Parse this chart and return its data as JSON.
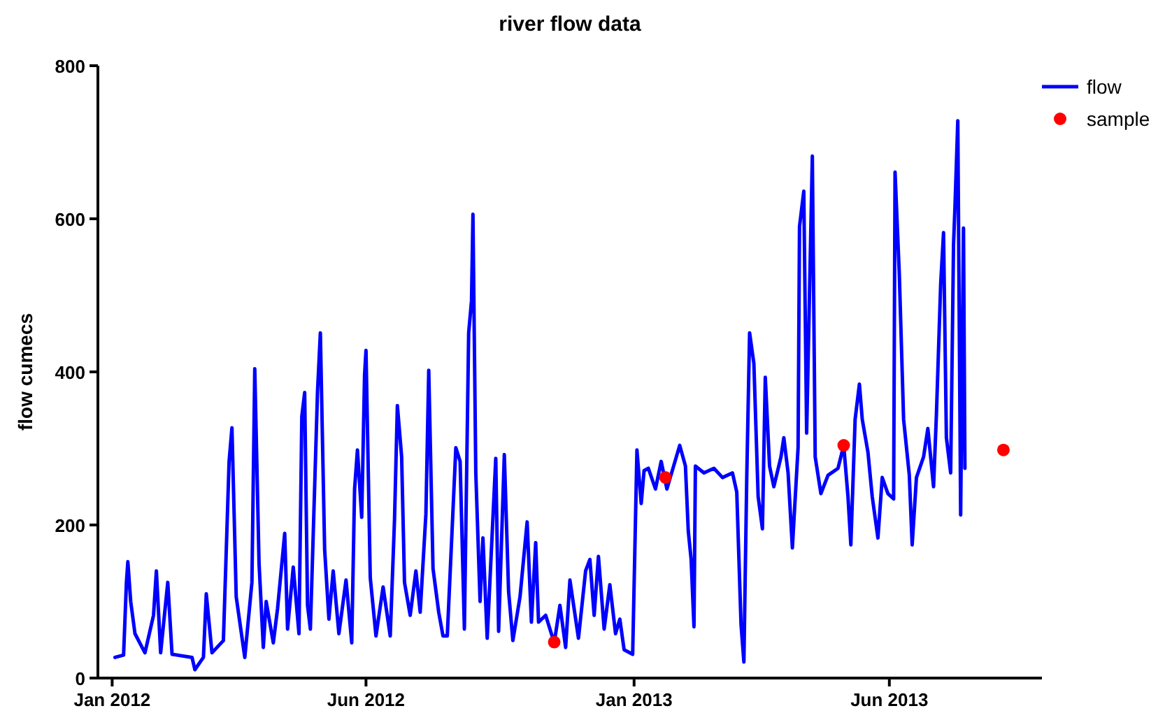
{
  "chart_data": {
    "type": "line",
    "title": "river flow data",
    "ylabel": "flow cumecs",
    "xlim": [
      "2011-12-22",
      "2013-10-14"
    ],
    "xticks": [
      {
        "value": "2012-01-01",
        "label": "Jan 2012"
      },
      {
        "value": "2012-06-27",
        "label": "Jun 2012"
      },
      {
        "value": "2013-01-01",
        "label": "Jan 2013"
      },
      {
        "value": "2013-06-29",
        "label": "Jun 2013"
      }
    ],
    "ylim": [
      0,
      800
    ],
    "yticks": [
      0,
      200,
      400,
      600,
      800
    ],
    "grid": false,
    "legend": "top right",
    "series": [
      {
        "name": "flow",
        "color": "#0000ff",
        "marker": "none",
        "line_style": "solid",
        "x": [
          "2012-01-03",
          "2012-01-09",
          "2012-01-11",
          "2012-01-12",
          "2012-01-14",
          "2012-01-17",
          "2012-01-24",
          "2012-01-30",
          "2012-02-01",
          "2012-02-04",
          "2012-02-09",
          "2012-02-12",
          "2012-02-26",
          "2012-02-28",
          "2012-03-05",
          "2012-03-07",
          "2012-03-11",
          "2012-03-19",
          "2012-03-23",
          "2012-03-25",
          "2012-03-28",
          "2012-04-03",
          "2012-04-08",
          "2012-04-10",
          "2012-04-13",
          "2012-04-16",
          "2012-04-18",
          "2012-04-23",
          "2012-04-26",
          "2012-05-01",
          "2012-05-03",
          "2012-05-07",
          "2012-05-11",
          "2012-05-13",
          "2012-05-15",
          "2012-05-17",
          "2012-05-19",
          "2012-05-24",
          "2012-05-26",
          "2012-05-29",
          "2012-06-01",
          "2012-06-04",
          "2012-06-08",
          "2012-06-13",
          "2012-06-17",
          "2012-06-19",
          "2012-06-21",
          "2012-06-24",
          "2012-06-26",
          "2012-06-27",
          "2012-06-30",
          "2012-07-04",
          "2012-07-09",
          "2012-07-14",
          "2012-07-17",
          "2012-07-19",
          "2012-07-22",
          "2012-07-24",
          "2012-07-28",
          "2012-08-01",
          "2012-08-04",
          "2012-08-08",
          "2012-08-10",
          "2012-08-13",
          "2012-08-17",
          "2012-08-20",
          "2012-08-23",
          "2012-08-27",
          "2012-08-29",
          "2012-09-01",
          "2012-09-04",
          "2012-09-07",
          "2012-09-09",
          "2012-09-10",
          "2012-09-12",
          "2012-09-15",
          "2012-09-17",
          "2012-09-20",
          "2012-09-26",
          "2012-09-28",
          "2012-10-02",
          "2012-10-05",
          "2012-10-08",
          "2012-10-13",
          "2012-10-18",
          "2012-10-21",
          "2012-10-24",
          "2012-10-26",
          "2012-10-31",
          "2012-11-06",
          "2012-11-10",
          "2012-11-14",
          "2012-11-17",
          "2012-11-23",
          "2012-11-28",
          "2012-12-01",
          "2012-12-04",
          "2012-12-07",
          "2012-12-11",
          "2012-12-15",
          "2012-12-19",
          "2012-12-22",
          "2012-12-25",
          "2012-12-31",
          "2013-01-03",
          "2013-01-06",
          "2013-01-08",
          "2013-01-11",
          "2013-01-16",
          "2013-01-20",
          "2013-01-24",
          "2013-02-02",
          "2013-02-06",
          "2013-02-08",
          "2013-02-10",
          "2013-02-12",
          "2013-02-13",
          "2013-02-19",
          "2013-02-26",
          "2013-03-04",
          "2013-03-11",
          "2013-03-14",
          "2013-03-17",
          "2013-03-19",
          "2013-03-21",
          "2013-03-23",
          "2013-03-26",
          "2013-03-29",
          "2013-04-01",
          "2013-04-03",
          "2013-04-06",
          "2013-04-09",
          "2013-04-14",
          "2013-04-16",
          "2013-04-19",
          "2013-04-22",
          "2013-04-26",
          "2013-04-27",
          "2013-04-30",
          "2013-05-02",
          "2013-05-06",
          "2013-05-08",
          "2013-05-12",
          "2013-05-17",
          "2013-05-24",
          "2013-05-28",
          "2013-05-31",
          "2013-06-02",
          "2013-06-05",
          "2013-06-08",
          "2013-06-10",
          "2013-06-14",
          "2013-06-17",
          "2013-06-21",
          "2013-06-24",
          "2013-06-28",
          "2013-07-02",
          "2013-07-03",
          "2013-07-06",
          "2013-07-09",
          "2013-07-13",
          "2013-07-15",
          "2013-07-18",
          "2013-07-23",
          "2013-07-26",
          "2013-07-30",
          "2013-08-01",
          "2013-08-04",
          "2013-08-06",
          "2013-08-08",
          "2013-08-11",
          "2013-08-13",
          "2013-08-14",
          "2013-08-16",
          "2013-08-18",
          "2013-08-20",
          "2013-08-21"
        ],
        "values": [
          27,
          30,
          125,
          152,
          100,
          58,
          33,
          82,
          140,
          33,
          125,
          31,
          27,
          11,
          27,
          110,
          33,
          49,
          283,
          327,
          106,
          27,
          125,
          404,
          150,
          40,
          100,
          46,
          91,
          189,
          64,
          145,
          58,
          342,
          373,
          95,
          64,
          374,
          451,
          168,
          77,
          140,
          58,
          128,
          46,
          247,
          298,
          210,
          396,
          428,
          131,
          55,
          119,
          55,
          207,
          356,
          289,
          125,
          82,
          140,
          86,
          214,
          402,
          143,
          86,
          55,
          55,
          219,
          301,
          283,
          64,
          451,
          493,
          606,
          268,
          100,
          183,
          52,
          287,
          61,
          292,
          113,
          49,
          106,
          204,
          73,
          177,
          73,
          82,
          46,
          95,
          40,
          128,
          52,
          140,
          155,
          82,
          159,
          64,
          122,
          58,
          77,
          37,
          31,
          298,
          228,
          271,
          274,
          247,
          283,
          247,
          304,
          277,
          192,
          155,
          67,
          277,
          268,
          274,
          262,
          268,
          243,
          70,
          21,
          262,
          451,
          411,
          237,
          195,
          393,
          277,
          250,
          289,
          314,
          268,
          170,
          301,
          590,
          636,
          320,
          682,
          289,
          241,
          265,
          274,
          304,
          237,
          174,
          338,
          384,
          338,
          295,
          237,
          183,
          262,
          241,
          234,
          661,
          527,
          338,
          265,
          174,
          262,
          289,
          326,
          250,
          344,
          515,
          582,
          314,
          268,
          566,
          615,
          728,
          213,
          588,
          274
        ]
      },
      {
        "name": "sample",
        "type": "scatter",
        "color": "#ff0000",
        "marker": "circle",
        "x": [
          "2012-11-06",
          "2013-01-23",
          "2013-05-28",
          "2013-09-17"
        ],
        "values": [
          47,
          262,
          304,
          298
        ]
      }
    ]
  }
}
